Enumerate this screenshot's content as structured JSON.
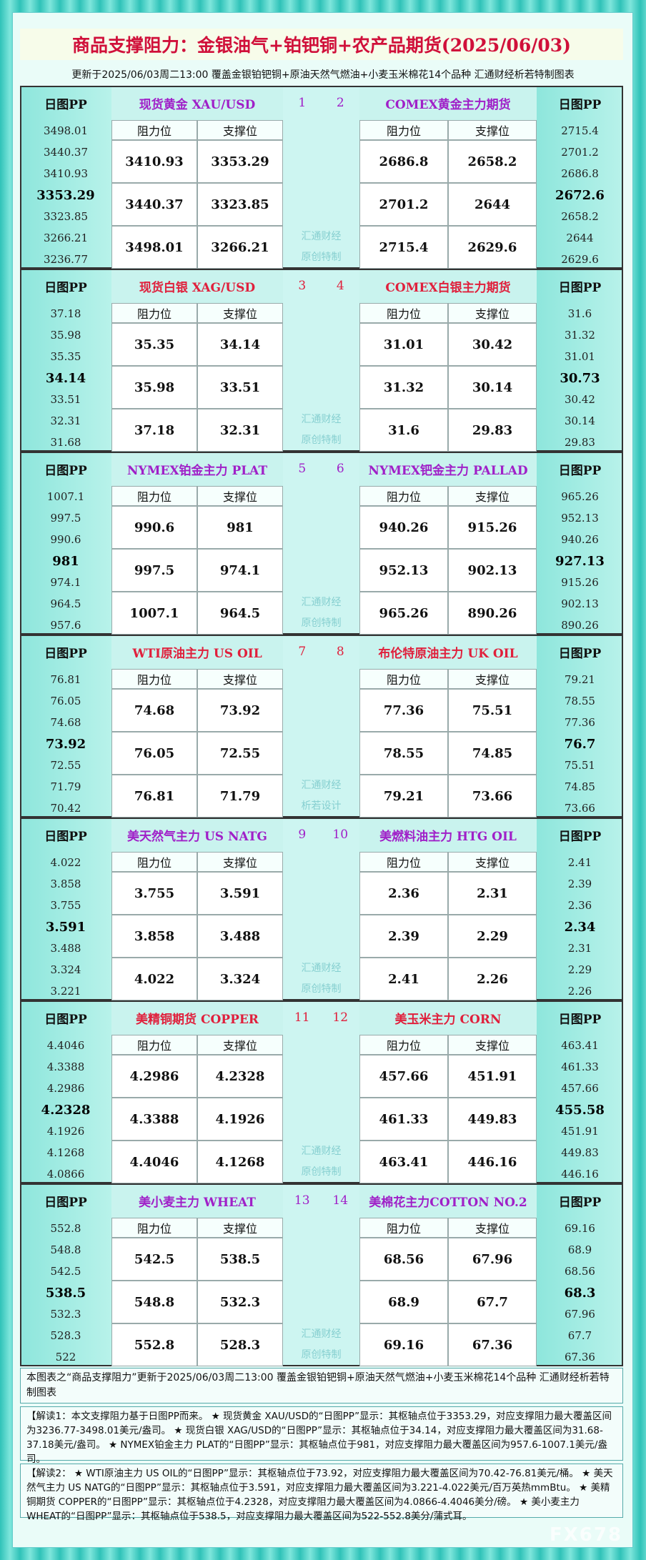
{
  "header": {
    "title": "商品支撑阻力：金银油气+铂钯铜+农产品期货(2025/06/03)",
    "subtitle": "更新于2025/06/03周二13:00 覆盖金银铂钯铜+原油天然气燃油+小麦玉米棉花14个品种 汇通财经析若特制图表"
  },
  "labels": {
    "pp": "日图PP",
    "resistance": "阻力位",
    "support": "支撑位"
  },
  "blocks": [
    {
      "color": "#a020c8",
      "watermark": [
        "汇通财经",
        "原创特制"
      ],
      "left": {
        "name": "现货黄金 XAU/USD",
        "number": 1,
        "pp": [
          3498.01,
          3440.37,
          3410.93,
          3353.29,
          3323.85,
          3266.21,
          3236.77
        ],
        "rows": [
          [
            3410.93,
            3353.29
          ],
          [
            3440.37,
            3323.85
          ],
          [
            3498.01,
            3266.21
          ]
        ]
      },
      "right": {
        "name": "COMEX黄金主力期货",
        "number": 2,
        "pp": [
          2715.4,
          2701.2,
          2686.8,
          2672.6,
          2658.2,
          2644,
          2629.6
        ],
        "rows": [
          [
            2686.8,
            2658.2
          ],
          [
            2701.2,
            2644
          ],
          [
            2715.4,
            2629.6
          ]
        ]
      }
    },
    {
      "color": "#e0203c",
      "watermark": [
        "汇通财经",
        "原创特制"
      ],
      "left": {
        "name": "现货白银 XAG/USD",
        "number": 3,
        "pp": [
          37.18,
          35.98,
          35.35,
          34.14,
          33.51,
          32.31,
          31.68
        ],
        "rows": [
          [
            35.35,
            34.14
          ],
          [
            35.98,
            33.51
          ],
          [
            37.18,
            32.31
          ]
        ]
      },
      "right": {
        "name": "COMEX白银主力期货",
        "number": 4,
        "pp": [
          31.6,
          31.32,
          31.01,
          30.73,
          30.42,
          30.14,
          29.83
        ],
        "rows": [
          [
            31.01,
            30.42
          ],
          [
            31.32,
            30.14
          ],
          [
            31.6,
            29.83
          ]
        ]
      }
    },
    {
      "color": "#a020c8",
      "watermark": [
        "汇通财经",
        "原创特制"
      ],
      "left": {
        "name": "NYMEX铂金主力 PLAT",
        "number": 5,
        "pp": [
          1007.1,
          997.5,
          990.6,
          981,
          974.1,
          964.5,
          957.6
        ],
        "rows": [
          [
            990.6,
            981
          ],
          [
            997.5,
            974.1
          ],
          [
            1007.1,
            964.5
          ]
        ]
      },
      "right": {
        "name": "NYMEX钯金主力 PALLAD",
        "number": 6,
        "pp": [
          965.26,
          952.13,
          940.26,
          927.13,
          915.26,
          902.13,
          890.26
        ],
        "rows": [
          [
            940.26,
            915.26
          ],
          [
            952.13,
            902.13
          ],
          [
            965.26,
            890.26
          ]
        ]
      }
    },
    {
      "color": "#e0203c",
      "watermark": [
        "汇通财经",
        "析若设计"
      ],
      "left": {
        "name": "WTI原油主力 US OIL",
        "number": 7,
        "pp": [
          76.81,
          76.05,
          74.68,
          73.92,
          72.55,
          71.79,
          70.42
        ],
        "rows": [
          [
            74.68,
            73.92
          ],
          [
            76.05,
            72.55
          ],
          [
            76.81,
            71.79
          ]
        ]
      },
      "right": {
        "name": "布伦特原油主力 UK OIL",
        "number": 8,
        "pp": [
          79.21,
          78.55,
          77.36,
          76.7,
          75.51,
          74.85,
          73.66
        ],
        "rows": [
          [
            77.36,
            75.51
          ],
          [
            78.55,
            74.85
          ],
          [
            79.21,
            73.66
          ]
        ]
      }
    },
    {
      "color": "#a020c8",
      "watermark": [
        "汇通财经",
        "原创特制"
      ],
      "left": {
        "name": "美天然气主力 US NATG",
        "number": 9,
        "pp": [
          4.022,
          3.858,
          3.755,
          3.591,
          3.488,
          3.324,
          3.221
        ],
        "rows": [
          [
            3.755,
            3.591
          ],
          [
            3.858,
            3.488
          ],
          [
            4.022,
            3.324
          ]
        ]
      },
      "right": {
        "name": "美燃料油主力 HTG OIL",
        "number": 10,
        "pp": [
          2.41,
          2.39,
          2.36,
          2.34,
          2.31,
          2.29,
          2.26
        ],
        "rows": [
          [
            2.36,
            2.31
          ],
          [
            2.39,
            2.29
          ],
          [
            2.41,
            2.26
          ]
        ]
      }
    },
    {
      "color": "#e0203c",
      "watermark": [
        "汇通财经",
        "原创特制"
      ],
      "left": {
        "name": "美精铜期货 COPPER",
        "number": 11,
        "pp": [
          4.4046,
          4.3388,
          4.2986,
          4.2328,
          4.1926,
          4.1268,
          4.0866
        ],
        "rows": [
          [
            4.2986,
            4.2328
          ],
          [
            4.3388,
            4.1926
          ],
          [
            4.4046,
            4.1268
          ]
        ]
      },
      "right": {
        "name": "美玉米主力 CORN",
        "number": 12,
        "pp": [
          463.41,
          461.33,
          457.66,
          455.58,
          451.91,
          449.83,
          446.16
        ],
        "rows": [
          [
            457.66,
            451.91
          ],
          [
            461.33,
            449.83
          ],
          [
            463.41,
            446.16
          ]
        ]
      }
    },
    {
      "color": "#a020c8",
      "watermark": [
        "汇通财经",
        "原创特制"
      ],
      "left": {
        "name": "美小麦主力 WHEAT",
        "number": 13,
        "pp": [
          552.8,
          548.8,
          542.5,
          538.5,
          532.3,
          528.3,
          522
        ],
        "rows": [
          [
            542.5,
            538.5
          ],
          [
            548.8,
            532.3
          ],
          [
            552.8,
            528.3
          ]
        ]
      },
      "right": {
        "name": "美棉花主力COTTON NO.2",
        "number": 14,
        "pp": [
          69.16,
          68.9,
          68.56,
          68.3,
          67.96,
          67.7,
          67.36
        ],
        "rows": [
          [
            68.56,
            67.96
          ],
          [
            68.9,
            67.7
          ],
          [
            69.16,
            67.36
          ]
        ]
      }
    }
  ],
  "footer": {
    "note": "本图表之“商品支撑阻力”更新于2025/06/03周二13:00 覆盖金银铂钯铜+原油天然气燃油+小麦玉米棉花14个品种 汇通财经析若特制图表",
    "notes": [
      "【解读1：本文支撑阻力基于日图PP而来。 ★ 现货黄金 XAU/USD的“日图PP”显示：其枢轴点位于3353.29，对应支撑阻力最大覆盖区间为3236.77-3498.01美元/盎司。 ★ 现货白银 XAG/USD的“日图PP”显示：其枢轴点位于34.14，对应支撑阻力最大覆盖区间为31.68-37.18美元/盎司。 ★ NYMEX铂金主力 PLAT的“日图PP”显示：其枢轴点位于981，对应支撑阻力最大覆盖区间为957.6-1007.1美元/盎司。",
      "【解读2： ★ WTI原油主力 US OIL的“日图PP”显示：其枢轴点位于73.92，对应支撑阻力最大覆盖区间为70.42-76.81美元/桶。 ★ 美天然气主力 US NATG的“日图PP”显示：其枢轴点位于3.591，对应支撑阻力最大覆盖区间为3.221-4.022美元/百万英热mmBtu。 ★ 美精铜期货 COPPER的“日图PP”显示：其枢轴点位于4.2328，对应支撑阻力最大覆盖区间为4.0866-4.4046美分/磅。 ★ 美小麦主力 WHEAT的“日图PP”显示：其枢轴点位于538.5，对应支撑阻力最大覆盖区间为522-552.8美分/蒲式耳。"
    ],
    "watermark": "FX678"
  }
}
